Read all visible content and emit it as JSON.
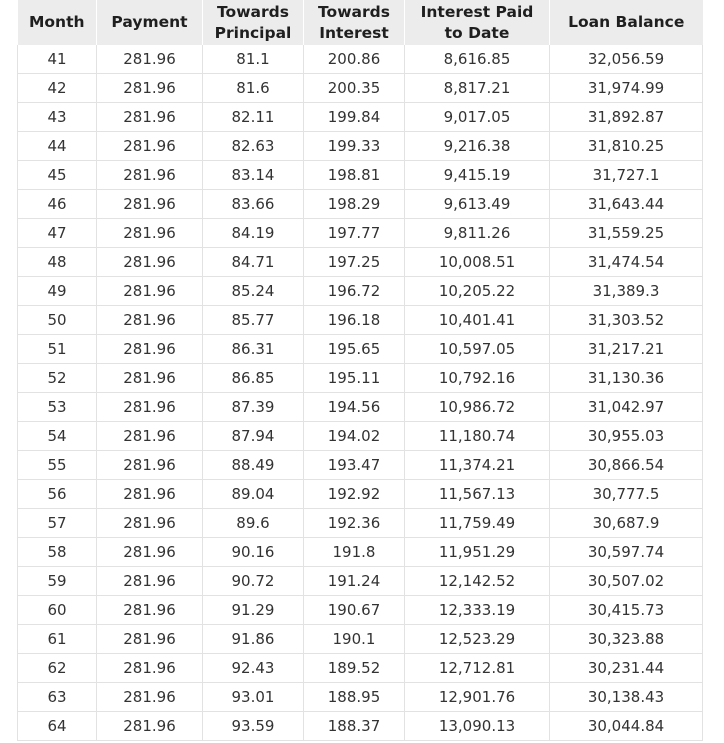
{
  "table": {
    "headers": {
      "month": "Month",
      "payment": "Payment",
      "principal": [
        "Towards",
        "Principal"
      ],
      "interest": [
        "Towards",
        "Interest"
      ],
      "paid": [
        "Interest Paid",
        "to Date"
      ],
      "balance": "Loan Balance"
    },
    "rows": [
      [
        "41",
        "281.96",
        "81.1",
        "200.86",
        "8,616.85",
        "32,056.59"
      ],
      [
        "42",
        "281.96",
        "81.6",
        "200.35",
        "8,817.21",
        "31,974.99"
      ],
      [
        "43",
        "281.96",
        "82.11",
        "199.84",
        "9,017.05",
        "31,892.87"
      ],
      [
        "44",
        "281.96",
        "82.63",
        "199.33",
        "9,216.38",
        "31,810.25"
      ],
      [
        "45",
        "281.96",
        "83.14",
        "198.81",
        "9,415.19",
        "31,727.1"
      ],
      [
        "46",
        "281.96",
        "83.66",
        "198.29",
        "9,613.49",
        "31,643.44"
      ],
      [
        "47",
        "281.96",
        "84.19",
        "197.77",
        "9,811.26",
        "31,559.25"
      ],
      [
        "48",
        "281.96",
        "84.71",
        "197.25",
        "10,008.51",
        "31,474.54"
      ],
      [
        "49",
        "281.96",
        "85.24",
        "196.72",
        "10,205.22",
        "31,389.3"
      ],
      [
        "50",
        "281.96",
        "85.77",
        "196.18",
        "10,401.41",
        "31,303.52"
      ],
      [
        "51",
        "281.96",
        "86.31",
        "195.65",
        "10,597.05",
        "31,217.21"
      ],
      [
        "52",
        "281.96",
        "86.85",
        "195.11",
        "10,792.16",
        "31,130.36"
      ],
      [
        "53",
        "281.96",
        "87.39",
        "194.56",
        "10,986.72",
        "31,042.97"
      ],
      [
        "54",
        "281.96",
        "87.94",
        "194.02",
        "11,180.74",
        "30,955.03"
      ],
      [
        "55",
        "281.96",
        "88.49",
        "193.47",
        "11,374.21",
        "30,866.54"
      ],
      [
        "56",
        "281.96",
        "89.04",
        "192.92",
        "11,567.13",
        "30,777.5"
      ],
      [
        "57",
        "281.96",
        "89.6",
        "192.36",
        "11,759.49",
        "30,687.9"
      ],
      [
        "58",
        "281.96",
        "90.16",
        "191.8",
        "11,951.29",
        "30,597.74"
      ],
      [
        "59",
        "281.96",
        "90.72",
        "191.24",
        "12,142.52",
        "30,507.02"
      ],
      [
        "60",
        "281.96",
        "91.29",
        "190.67",
        "12,333.19",
        "30,415.73"
      ],
      [
        "61",
        "281.96",
        "91.86",
        "190.1",
        "12,523.29",
        "30,323.88"
      ],
      [
        "62",
        "281.96",
        "92.43",
        "189.52",
        "12,712.81",
        "30,231.44"
      ],
      [
        "63",
        "281.96",
        "93.01",
        "188.95",
        "12,901.76",
        "30,138.43"
      ],
      [
        "64",
        "281.96",
        "93.59",
        "188.37",
        "13,090.13",
        "30,044.84"
      ]
    ]
  },
  "colors": {
    "header_background": "#ececec",
    "grid_line": "#e2e2e2",
    "text": "#333333"
  }
}
